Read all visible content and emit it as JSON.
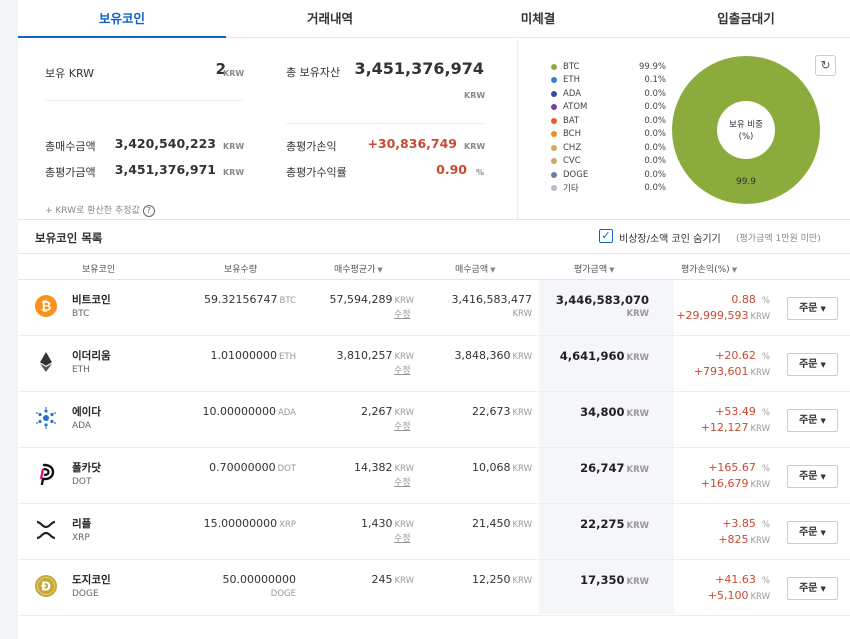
{
  "tabs": [
    "보유코인",
    "거래내역",
    "미체결",
    "입출금대기"
  ],
  "summary": {
    "krw_label": "보유 KRW",
    "krw_value": "2",
    "krw_unit": "KRW",
    "total_label": "총 보유자산",
    "total_value": "3,451,376,974",
    "total_unit": "KRW",
    "buy_label": "총매수금액",
    "buy_value": "3,420,540,223",
    "buy_unit": "KRW",
    "pl_label": "총평가손익",
    "pl_value": "+30,836,749",
    "pl_unit": "KRW",
    "eval_label": "총평가금액",
    "eval_value": "3,451,376,971",
    "eval_unit": "KRW",
    "rate_label": "총평가수익률",
    "rate_value": "0.90",
    "rate_unit": "%",
    "note": "+ KRW로 환산한 추정값"
  },
  "legend": [
    {
      "name": "BTC",
      "pct": "99.9%",
      "color": "#8bab3c"
    },
    {
      "name": "ETH",
      "pct": "0.1%",
      "color": "#2e86c9"
    },
    {
      "name": "ADA",
      "pct": "0.0%",
      "color": "#3c4a9c"
    },
    {
      "name": "ATOM",
      "pct": "0.0%",
      "color": "#7a3f98"
    },
    {
      "name": "BAT",
      "pct": "0.0%",
      "color": "#e85d2f"
    },
    {
      "name": "BCH",
      "pct": "0.0%",
      "color": "#f08a24"
    },
    {
      "name": "CHZ",
      "pct": "0.0%",
      "color": "#d8a85a"
    },
    {
      "name": "CVC",
      "pct": "0.0%",
      "color": "#c9a86a"
    },
    {
      "name": "DOGE",
      "pct": "0.0%",
      "color": "#6a7f9a"
    },
    {
      "name": "기타",
      "pct": "0.0%",
      "color": "#b8bcc4"
    }
  ],
  "pie": {
    "center_title": "보유 비중",
    "center_sub": "(%)",
    "slice_label": "99.9",
    "color": "#8bab3c"
  },
  "list": {
    "title": "보유코인 목록",
    "hide_label": "비상장/소액 코인 숨기기",
    "hide_sub": "(평가금액 1만원 미만)",
    "columns": [
      "보유코인",
      "보유수량",
      "매수평균가",
      "매수금액",
      "평가금액",
      "평가손익(%)"
    ]
  },
  "edit_label": "수정",
  "krw": "KRW",
  "order_label": "주문",
  "rows": [
    {
      "name": "비트코인",
      "sym": "BTC",
      "qty": "59.32156747",
      "avg": "57,594,289",
      "amt": "3,416,583,477",
      "eval": "3,446,583,070",
      "pct": "0.88",
      "pl": "+29,999,593",
      "icon": "btc-icon"
    },
    {
      "name": "이더리움",
      "sym": "ETH",
      "qty": "1.01000000",
      "avg": "3,810,257",
      "amt": "3,848,360",
      "eval": "4,641,960",
      "pct": "+20.62",
      "pl": "+793,601",
      "icon": "eth-icon"
    },
    {
      "name": "에이다",
      "sym": "ADA",
      "qty": "10.00000000",
      "avg": "2,267",
      "amt": "22,673",
      "eval": "34,800",
      "pct": "+53.49",
      "pl": "+12,127",
      "icon": "ada-icon"
    },
    {
      "name": "폴카닷",
      "sym": "DOT",
      "qty": "0.70000000",
      "avg": "14,382",
      "amt": "10,068",
      "eval": "26,747",
      "pct": "+165.67",
      "pl": "+16,679",
      "icon": "dot-icon"
    },
    {
      "name": "리플",
      "sym": "XRP",
      "qty": "15.00000000",
      "avg": "1,430",
      "amt": "21,450",
      "eval": "22,275",
      "pct": "+3.85",
      "pl": "+825",
      "icon": "xrp-icon"
    },
    {
      "name": "도지코인",
      "sym": "DOGE",
      "qty": "50.00000000",
      "avg": "245",
      "amt": "12,250",
      "eval": "17,350",
      "pct": "+41.63",
      "pl": "+5,100",
      "icon": "doge-icon"
    }
  ]
}
